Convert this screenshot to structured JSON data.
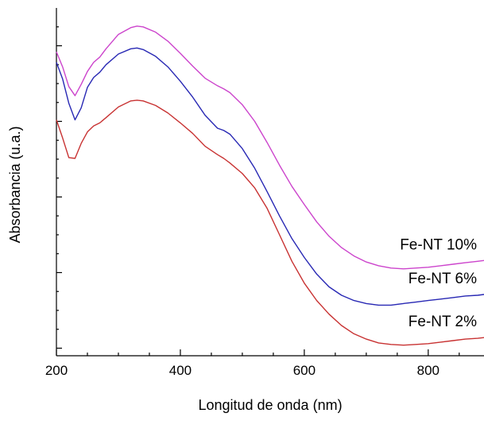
{
  "chart_data": {
    "type": "line",
    "title": "",
    "xlabel": "Longitud de onda (nm)",
    "ylabel": "Absorbancia (u.a.)",
    "xlim": [
      200,
      890
    ],
    "ylim": [
      0,
      4.6
    ],
    "x_ticks": [
      200,
      400,
      600,
      800
    ],
    "x_minor_ticks": [
      250,
      300,
      350,
      450,
      500,
      550,
      650,
      700,
      750,
      850
    ],
    "y_major_ticks": [
      0.1,
      1.1,
      2.1,
      3.1,
      4.1
    ],
    "y_minor_ticks": [
      0.35,
      0.6,
      0.85,
      1.35,
      1.6,
      1.85,
      2.35,
      2.6,
      2.85,
      3.35,
      3.6,
      3.85,
      4.35
    ],
    "show_y_tick_labels": false,
    "grid": false,
    "legend": "inline labels near right end of each curve",
    "series": [
      {
        "name": "Fe-NT 10%",
        "color": "#cc44cc",
        "x": [
          200,
          210,
          220,
          230,
          240,
          250,
          260,
          270,
          280,
          300,
          320,
          330,
          340,
          360,
          380,
          400,
          420,
          440,
          460,
          470,
          480,
          500,
          520,
          540,
          560,
          580,
          600,
          620,
          640,
          660,
          680,
          700,
          720,
          740,
          760,
          780,
          800,
          820,
          840,
          860,
          880,
          890
        ],
        "y": [
          4.02,
          3.82,
          3.56,
          3.44,
          3.59,
          3.76,
          3.88,
          3.95,
          4.06,
          4.25,
          4.34,
          4.36,
          4.35,
          4.28,
          4.16,
          4.0,
          3.83,
          3.67,
          3.57,
          3.53,
          3.48,
          3.32,
          3.1,
          2.82,
          2.52,
          2.24,
          2.0,
          1.77,
          1.58,
          1.43,
          1.32,
          1.24,
          1.19,
          1.16,
          1.15,
          1.16,
          1.17,
          1.19,
          1.21,
          1.23,
          1.25,
          1.26
        ]
      },
      {
        "name": "Fe-NT 6%",
        "color": "#2828b4",
        "x": [
          200,
          210,
          220,
          230,
          240,
          250,
          260,
          270,
          280,
          300,
          320,
          330,
          340,
          360,
          380,
          400,
          420,
          440,
          460,
          470,
          480,
          500,
          520,
          540,
          560,
          580,
          600,
          620,
          640,
          660,
          680,
          700,
          720,
          740,
          760,
          780,
          800,
          820,
          840,
          860,
          880,
          890
        ],
        "y": [
          3.88,
          3.66,
          3.34,
          3.12,
          3.28,
          3.55,
          3.68,
          3.75,
          3.85,
          3.99,
          4.06,
          4.07,
          4.05,
          3.96,
          3.82,
          3.63,
          3.42,
          3.18,
          3.01,
          2.98,
          2.93,
          2.74,
          2.48,
          2.17,
          1.85,
          1.55,
          1.3,
          1.08,
          0.91,
          0.8,
          0.73,
          0.69,
          0.67,
          0.67,
          0.69,
          0.71,
          0.73,
          0.75,
          0.77,
          0.79,
          0.8,
          0.81
        ]
      },
      {
        "name": "Fe-NT 2%",
        "color": "#c83232",
        "x": [
          200,
          210,
          220,
          230,
          240,
          250,
          260,
          270,
          280,
          300,
          320,
          330,
          340,
          360,
          380,
          400,
          420,
          440,
          460,
          470,
          480,
          500,
          520,
          540,
          560,
          580,
          600,
          620,
          640,
          660,
          680,
          700,
          720,
          740,
          760,
          780,
          800,
          820,
          840,
          860,
          880,
          890
        ],
        "y": [
          3.12,
          2.88,
          2.62,
          2.61,
          2.81,
          2.96,
          3.04,
          3.08,
          3.15,
          3.29,
          3.37,
          3.38,
          3.37,
          3.31,
          3.21,
          3.08,
          2.94,
          2.77,
          2.66,
          2.61,
          2.55,
          2.41,
          2.22,
          1.95,
          1.6,
          1.25,
          0.96,
          0.73,
          0.55,
          0.4,
          0.29,
          0.22,
          0.17,
          0.15,
          0.14,
          0.15,
          0.16,
          0.18,
          0.2,
          0.22,
          0.23,
          0.24
        ]
      }
    ]
  }
}
